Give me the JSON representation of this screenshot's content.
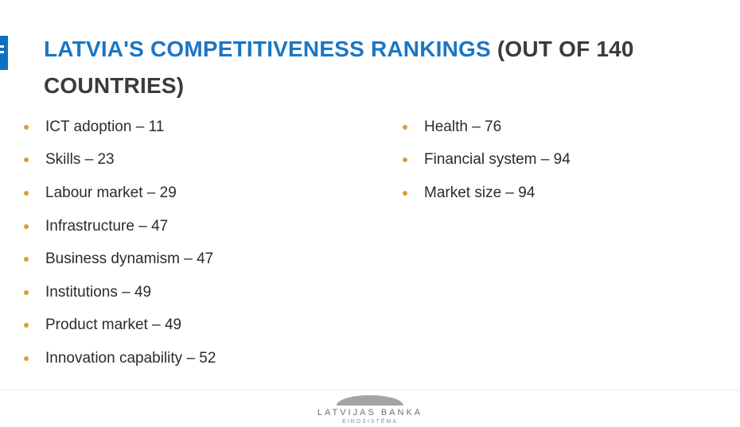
{
  "slide": {
    "title": {
      "highlight": "LATVIA'S COMPETITIVENESS RANKINGS",
      "suffix": " (OUT OF 140 COUNTRIES)"
    },
    "separator": " – ",
    "rankings": {
      "left_column": [
        {
          "label": "ICT adoption",
          "rank": 11
        },
        {
          "label": "Skills",
          "rank": 23
        },
        {
          "label": "Labour market",
          "rank": 29
        },
        {
          "label": "Infrastructure",
          "rank": 47
        },
        {
          "label": "Business dynamism",
          "rank": 47
        },
        {
          "label": "Institutions",
          "rank": 49
        },
        {
          "label": "Product market",
          "rank": 49
        },
        {
          "label": "Innovation capability",
          "rank": 52
        }
      ],
      "right_column": [
        {
          "label": "Health",
          "rank": 76
        },
        {
          "label": "Financial system",
          "rank": 94
        },
        {
          "label": "Market size",
          "rank": 94
        }
      ]
    },
    "footer": {
      "logo_name": "LATVIJAS BANKA",
      "logo_subtitle": "EIROSISTĒMA"
    },
    "colors": {
      "accent_blue": "#1B76C5",
      "tab_blue": "#0B72C3",
      "title_dark": "#3B3B3B",
      "bullet_orange": "#E09A3C",
      "text_dark": "#2B2B2B",
      "logo_gray": "#A3A3A8"
    }
  }
}
